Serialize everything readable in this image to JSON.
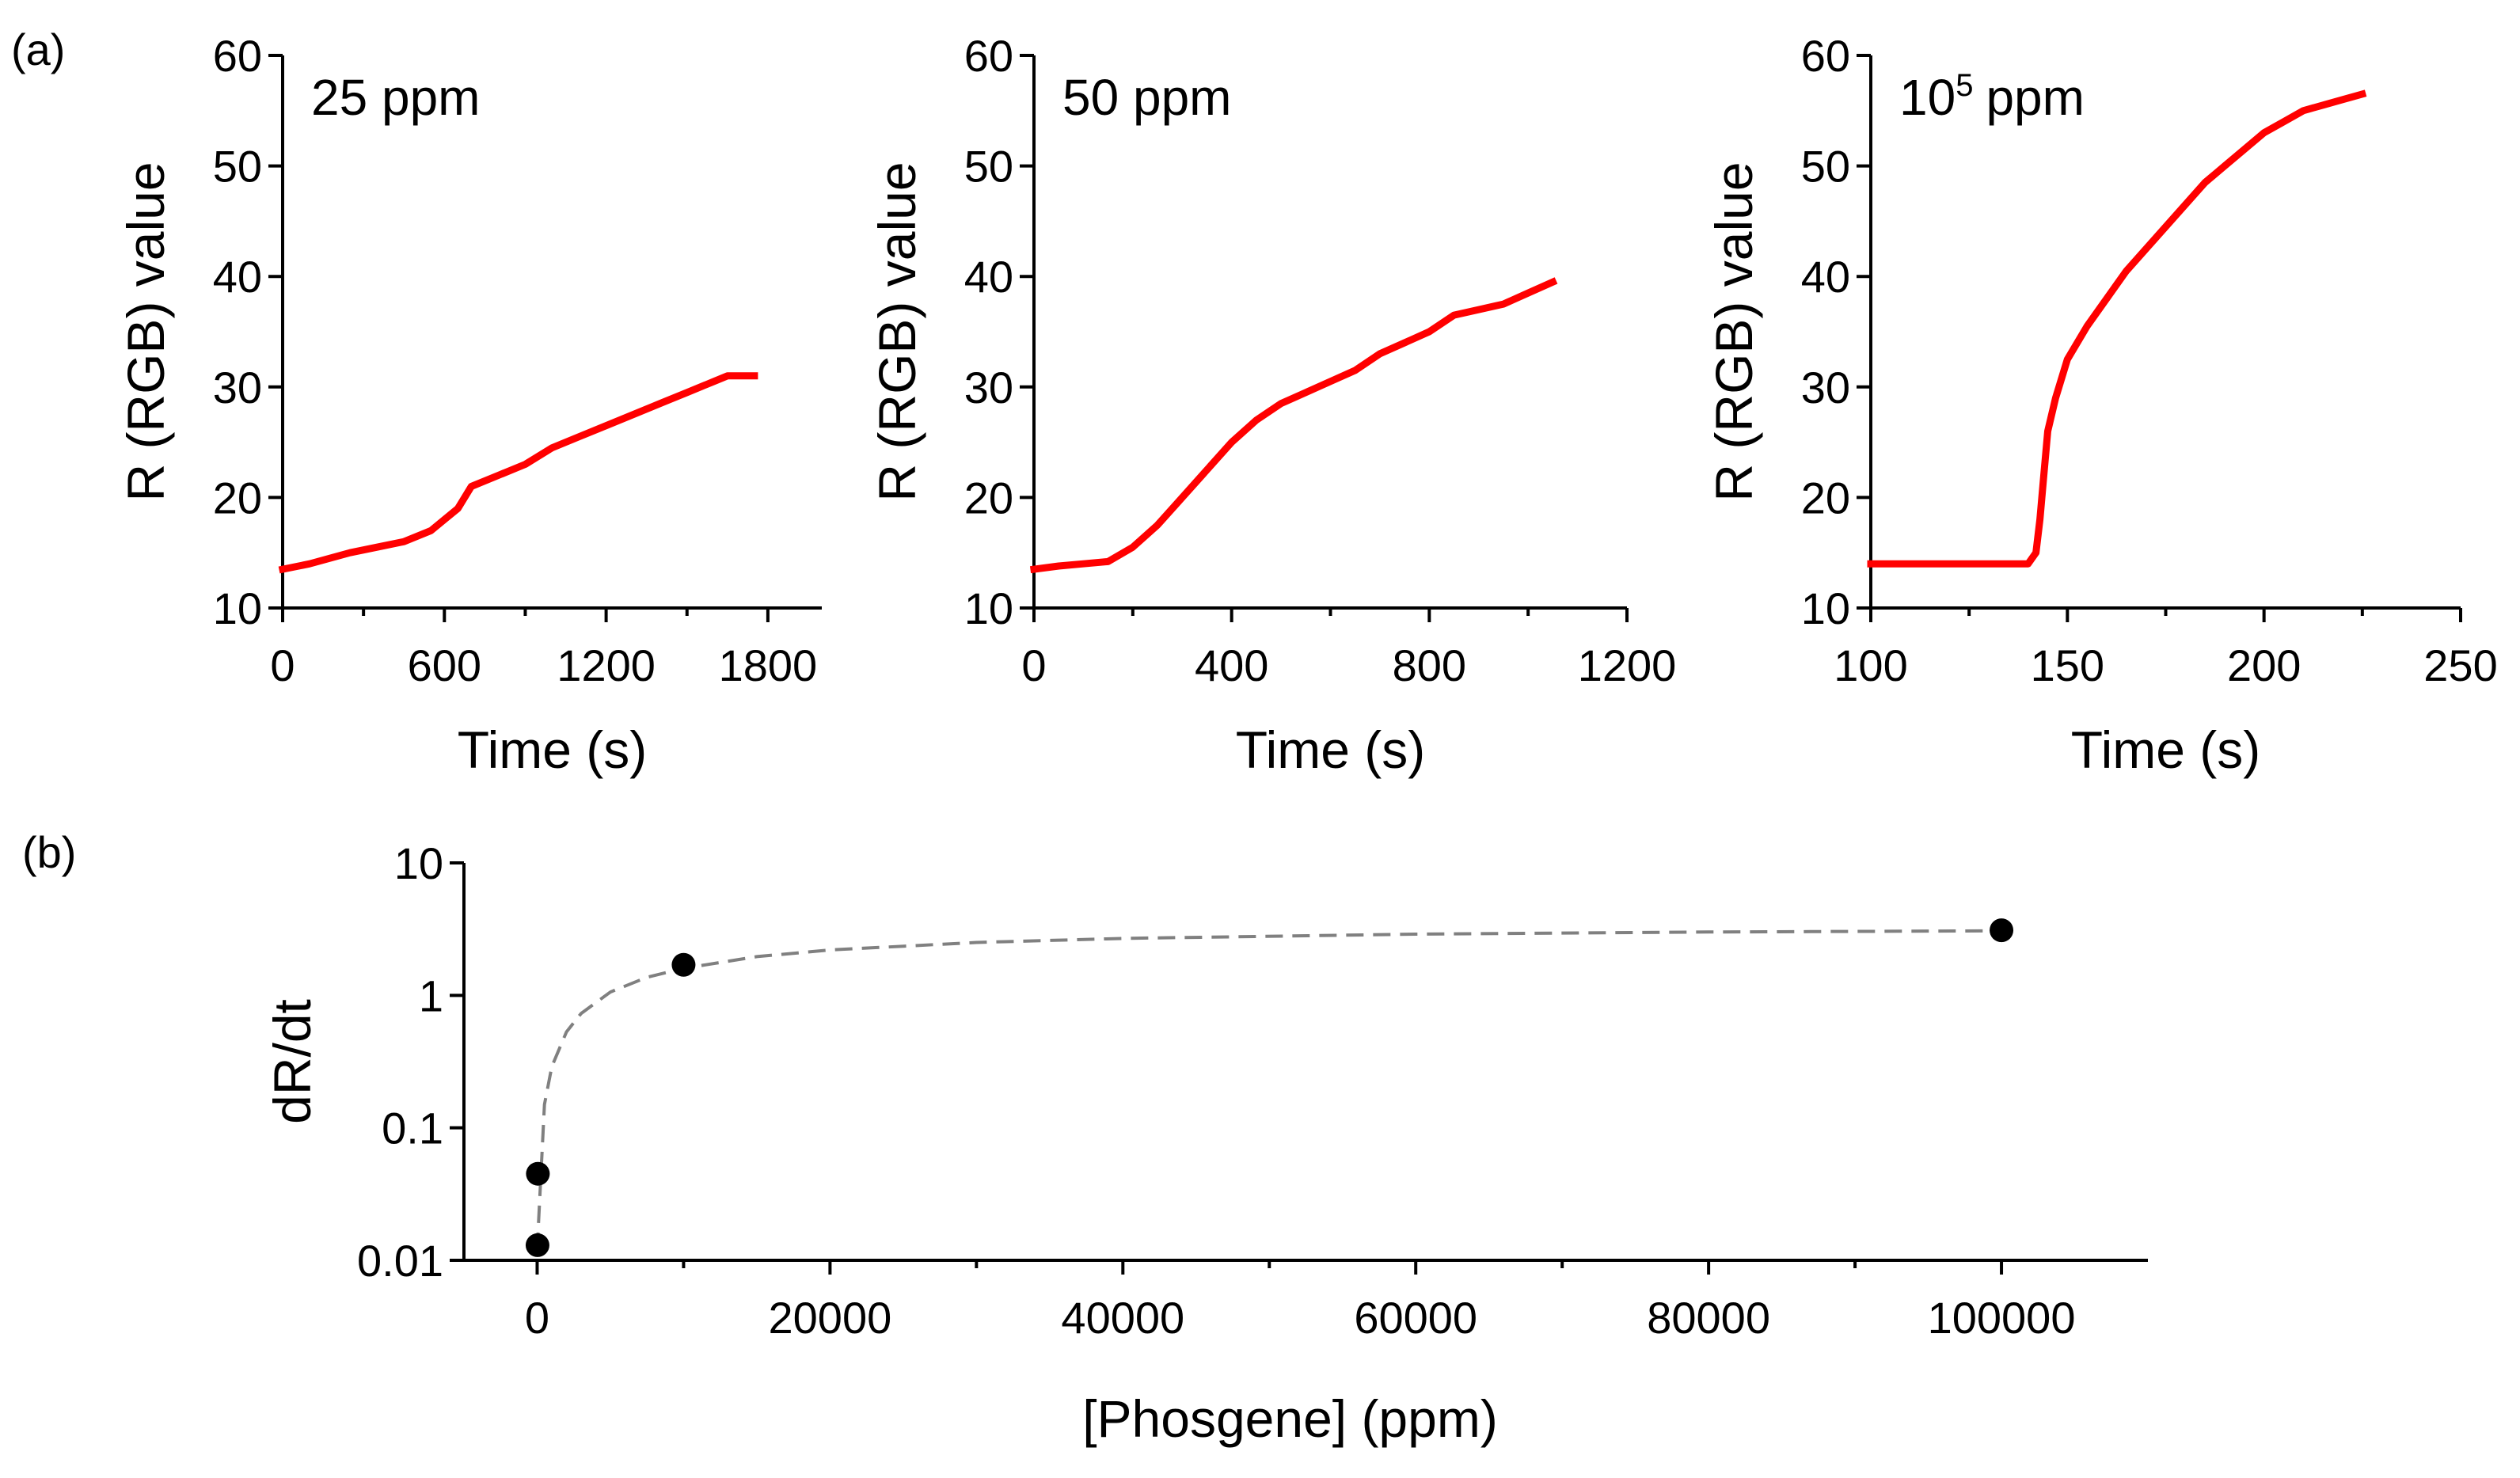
{
  "figure": {
    "panel_a_label": "(a)",
    "panel_b_label": "(b)"
  },
  "chart_data": [
    {
      "type": "line",
      "panel": "(a)",
      "annotation": "25 ppm",
      "annotation_sup": "",
      "xlabel": "Time (s)",
      "ylabel": "R (RGB) value",
      "xlim": [
        0,
        2000
      ],
      "ylim": [
        10,
        60
      ],
      "xticks": [
        0,
        600,
        1200,
        1800
      ],
      "yticks": [
        10,
        20,
        30,
        40,
        50,
        60
      ],
      "color": "#ff0000",
      "series": [
        {
          "name": "25 ppm",
          "x": [
            0,
            100,
            250,
            350,
            450,
            550,
            600,
            650,
            700,
            800,
            900,
            1000,
            1100,
            1200,
            1300,
            1400,
            1500,
            1600,
            1650,
            1750
          ],
          "y": [
            13.5,
            14,
            15,
            15.5,
            16,
            17,
            18,
            19,
            21,
            22,
            23,
            24.5,
            25.5,
            26.5,
            27.5,
            28.5,
            29.5,
            30.5,
            31,
            31
          ]
        }
      ]
    },
    {
      "type": "line",
      "panel": "(a)",
      "annotation": "50 ppm",
      "annotation_sup": "",
      "xlabel": "Time (s)",
      "ylabel": "R (RGB) value",
      "xlim": [
        0,
        1200
      ],
      "ylim": [
        10,
        60
      ],
      "xticks": [
        0,
        400,
        800,
        1200
      ],
      "yticks": [
        10,
        20,
        30,
        40,
        50,
        60
      ],
      "color": "#ff0000",
      "series": [
        {
          "name": "50 ppm",
          "x": [
            0,
            50,
            100,
            150,
            200,
            250,
            300,
            350,
            400,
            450,
            500,
            550,
            600,
            650,
            700,
            750,
            800,
            850,
            900,
            950,
            1000,
            1050
          ],
          "y": [
            13.5,
            13.8,
            14,
            14.2,
            15.5,
            17.5,
            20,
            22.5,
            25,
            27,
            28.5,
            29.5,
            30.5,
            31.5,
            33,
            34,
            35,
            36.5,
            37,
            37.5,
            38.5,
            39.5
          ]
        }
      ]
    },
    {
      "type": "line",
      "panel": "(a)",
      "annotation": "10",
      "annotation_sup": "5",
      "annotation_suffix": "ppm",
      "xlabel": "Time (s)",
      "ylabel": "R (RGB) value",
      "xlim": [
        100,
        250
      ],
      "ylim": [
        10,
        60
      ],
      "xticks": [
        100,
        150,
        200,
        250
      ],
      "yticks": [
        10,
        20,
        30,
        40,
        50,
        60
      ],
      "color": "#ff0000",
      "series": [
        {
          "name": "10^5 ppm",
          "x": [
            100,
            120,
            140,
            142,
            143,
            144,
            145,
            147,
            150,
            155,
            160,
            165,
            170,
            175,
            180,
            185,
            190,
            195,
            200,
            205,
            210,
            215,
            220,
            225
          ],
          "y": [
            14,
            14,
            14,
            15,
            18,
            22,
            26,
            29,
            32.5,
            35.5,
            38,
            40.5,
            42.5,
            44.5,
            46.5,
            48.5,
            50,
            51.5,
            53,
            54,
            55,
            55.5,
            56,
            56.5
          ]
        }
      ]
    },
    {
      "type": "scatter",
      "panel": "(b)",
      "xlabel": "[Phosgene] (ppm)",
      "ylabel": "dR/dt",
      "yscale": "log",
      "xlim": [
        -5000,
        110000
      ],
      "ylim": [
        0.01,
        10
      ],
      "xticks": [
        0,
        20000,
        40000,
        60000,
        80000,
        100000
      ],
      "yticks": [
        0.01,
        0.1,
        1,
        10
      ],
      "ytick_labels": [
        "0.01",
        "0.1",
        "1",
        "10"
      ],
      "points": {
        "x": [
          25,
          50,
          10000,
          100000
        ],
        "y": [
          0.013,
          0.045,
          1.7,
          3.1
        ]
      },
      "fit": {
        "style": "dashed",
        "color": "#808080",
        "x": [
          0,
          500,
          1000,
          2000,
          3000,
          5000,
          7500,
          10000,
          15000,
          20000,
          30000,
          40000,
          60000,
          80000,
          100000
        ],
        "y": [
          0.012,
          0.15,
          0.29,
          0.53,
          0.73,
          1.06,
          1.37,
          1.6,
          1.96,
          2.2,
          2.51,
          2.69,
          2.9,
          3.01,
          3.07
        ]
      }
    }
  ]
}
